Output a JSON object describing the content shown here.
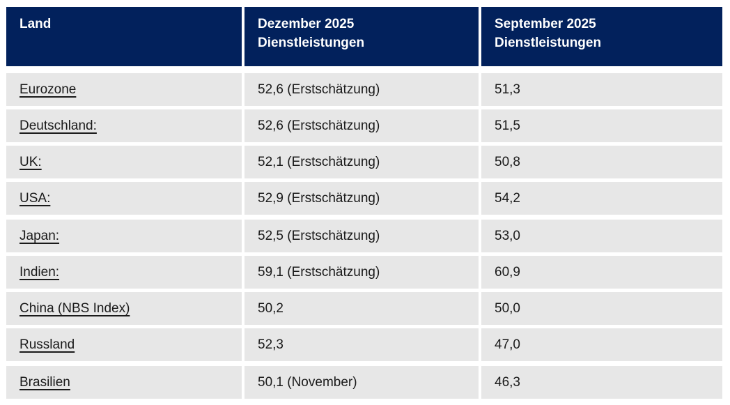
{
  "colors": {
    "header_bg": "#02215c",
    "header_text": "#ffffff",
    "row_bg": "#e7e7e7",
    "body_text": "#1a1a1a",
    "gutter": "#ffffff"
  },
  "table": {
    "columns": [
      {
        "label": "Land"
      },
      {
        "label": "Dezember 2025\nDienstleistungen"
      },
      {
        "label": "September 2025\nDienstleistungen"
      }
    ],
    "rows": [
      {
        "land": "Eurozone",
        "dezember": "52,6 (Erstschätzung)",
        "september": "51,3",
        "extra_gap": false
      },
      {
        "land": "Deutschland:",
        "dezember": "52,6 (Erstschätzung)",
        "september": "51,5",
        "extra_gap": false
      },
      {
        "land": "UK:",
        "dezember": "52,1 (Erstschätzung)",
        "september": "50,8",
        "extra_gap": false
      },
      {
        "land": "USA:",
        "dezember": "52,9 (Erstschätzung)",
        "september": "54,2",
        "extra_gap": false
      },
      {
        "land": "Japan:",
        "dezember": "52,5 (Erstschätzung)",
        "september": "53,0",
        "extra_gap": true
      },
      {
        "land": "Indien:",
        "dezember": "59,1 (Erstschätzung)",
        "september": "60,9",
        "extra_gap": false
      },
      {
        "land": "China (NBS Index)",
        "dezember": "50,2",
        "september": "50,0",
        "extra_gap": false
      },
      {
        "land": "Russland",
        "dezember": "52,3",
        "september": "47,0",
        "extra_gap": false
      },
      {
        "land": "Brasilien",
        "dezember": "50,1 (November)",
        "september": "46,3",
        "extra_gap": true
      }
    ]
  },
  "chart_data": {
    "type": "table",
    "columns": [
      "Land",
      "Dezember 2025 Dienstleistungen",
      "September 2025 Dienstleistungen"
    ],
    "rows": [
      [
        "Eurozone",
        "52,6 (Erstschätzung)",
        "51,3"
      ],
      [
        "Deutschland:",
        "52,6 (Erstschätzung)",
        "51,5"
      ],
      [
        "UK:",
        "52,1 (Erstschätzung)",
        "50,8"
      ],
      [
        "USA:",
        "52,9 (Erstschätzung)",
        "54,2"
      ],
      [
        "Japan:",
        "52,5 (Erstschätzung)",
        "53,0"
      ],
      [
        "Indien:",
        "59,1 (Erstschätzung)",
        "60,9"
      ],
      [
        "China (NBS Index)",
        "50,2",
        "50,0"
      ],
      [
        "Russland",
        "52,3",
        "47,0"
      ],
      [
        "Brasilien",
        "50,1 (November)",
        "46,3"
      ]
    ]
  }
}
